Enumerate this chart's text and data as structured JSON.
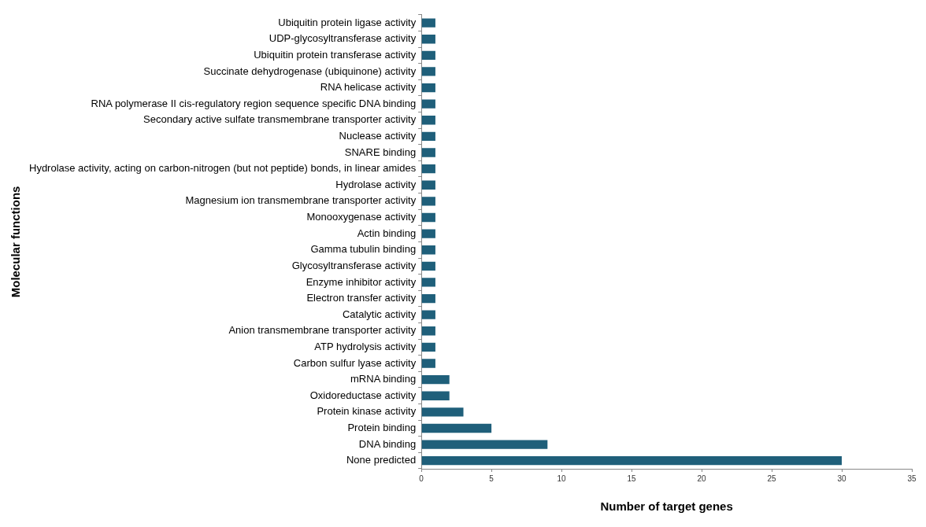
{
  "chart_data": {
    "type": "bar",
    "orientation": "horizontal",
    "xlabel": "Number of target genes",
    "ylabel": "Molecular functions",
    "categories": [
      "Ubiquitin protein ligase activity",
      "UDP-glycosyltransferase activity",
      "Ubiquitin protein transferase activity",
      "Succinate dehydrogenase (ubiquinone) activity",
      "RNA helicase activity",
      "RNA polymerase II cis-regulatory region sequence specific DNA binding",
      "Secondary active sulfate transmembrane transporter activity",
      "Nuclease activity",
      "SNARE binding",
      "Hydrolase activity, acting on carbon-nitrogen (but not peptide) bonds, in linear amides",
      "Hydrolase activity",
      "Magnesium ion transmembrane transporter activity",
      "Monooxygenase activity",
      "Actin binding",
      "Gamma tubulin binding",
      "Glycosyltransferase activity",
      "Enzyme inhibitor activity",
      "Electron transfer activity",
      "Catalytic activity",
      "Anion transmembrane transporter activity",
      "ATP hydrolysis activity",
      "Carbon sulfur lyase activity",
      "mRNA binding",
      "Oxidoreductase activity",
      "Protein kinase activity",
      "Protein binding",
      "DNA binding",
      "None predicted"
    ],
    "values": [
      1,
      1,
      1,
      1,
      1,
      1,
      1,
      1,
      1,
      1,
      1,
      1,
      1,
      1,
      1,
      1,
      1,
      1,
      1,
      1,
      1,
      1,
      2,
      2,
      3,
      5,
      9,
      30
    ],
    "color": "#1f5f7a",
    "xlim": [
      0,
      35
    ],
    "xticks": [
      0,
      5,
      10,
      15,
      20,
      25,
      30,
      35
    ]
  }
}
